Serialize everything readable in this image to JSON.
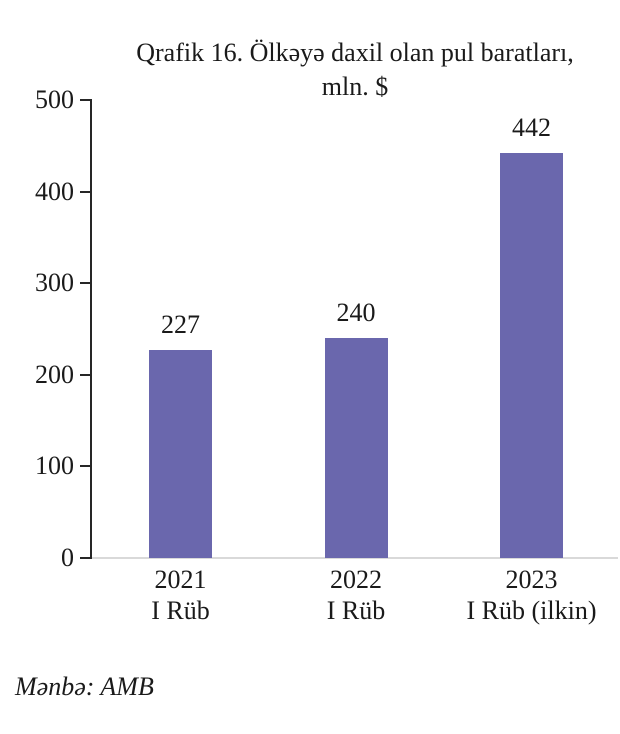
{
  "chart_data": {
    "type": "bar",
    "title": "Qrafik 16. Ölkəyə daxil olan pul baratları, mln. $",
    "title_lines": [
      "Qrafik 16. Ölkəyə daxil olan pul baratları,",
      "mln. $"
    ],
    "categories": [
      "2021 I Rüb",
      "2022 I Rüb",
      "2023 I Rüb (ilkin)"
    ],
    "category_lines": [
      [
        "2021",
        "I Rüb"
      ],
      [
        "2022",
        "I Rüb"
      ],
      [
        "2023",
        "I Rüb (ilkin)"
      ]
    ],
    "values": [
      227,
      240,
      442
    ],
    "data_labels": [
      "227",
      "240",
      "442"
    ],
    "xlabel": "",
    "ylabel": "",
    "ylim": [
      0,
      500
    ],
    "y_ticks": [
      0,
      100,
      200,
      300,
      400,
      500
    ],
    "grid": false,
    "legend": "none",
    "bar_color": "#6a67ad",
    "axis_color": "#262626",
    "baseline_color": "#d9d9d9",
    "text_color": "#1a1a1a"
  },
  "source_note": "Mənbə: AMB"
}
